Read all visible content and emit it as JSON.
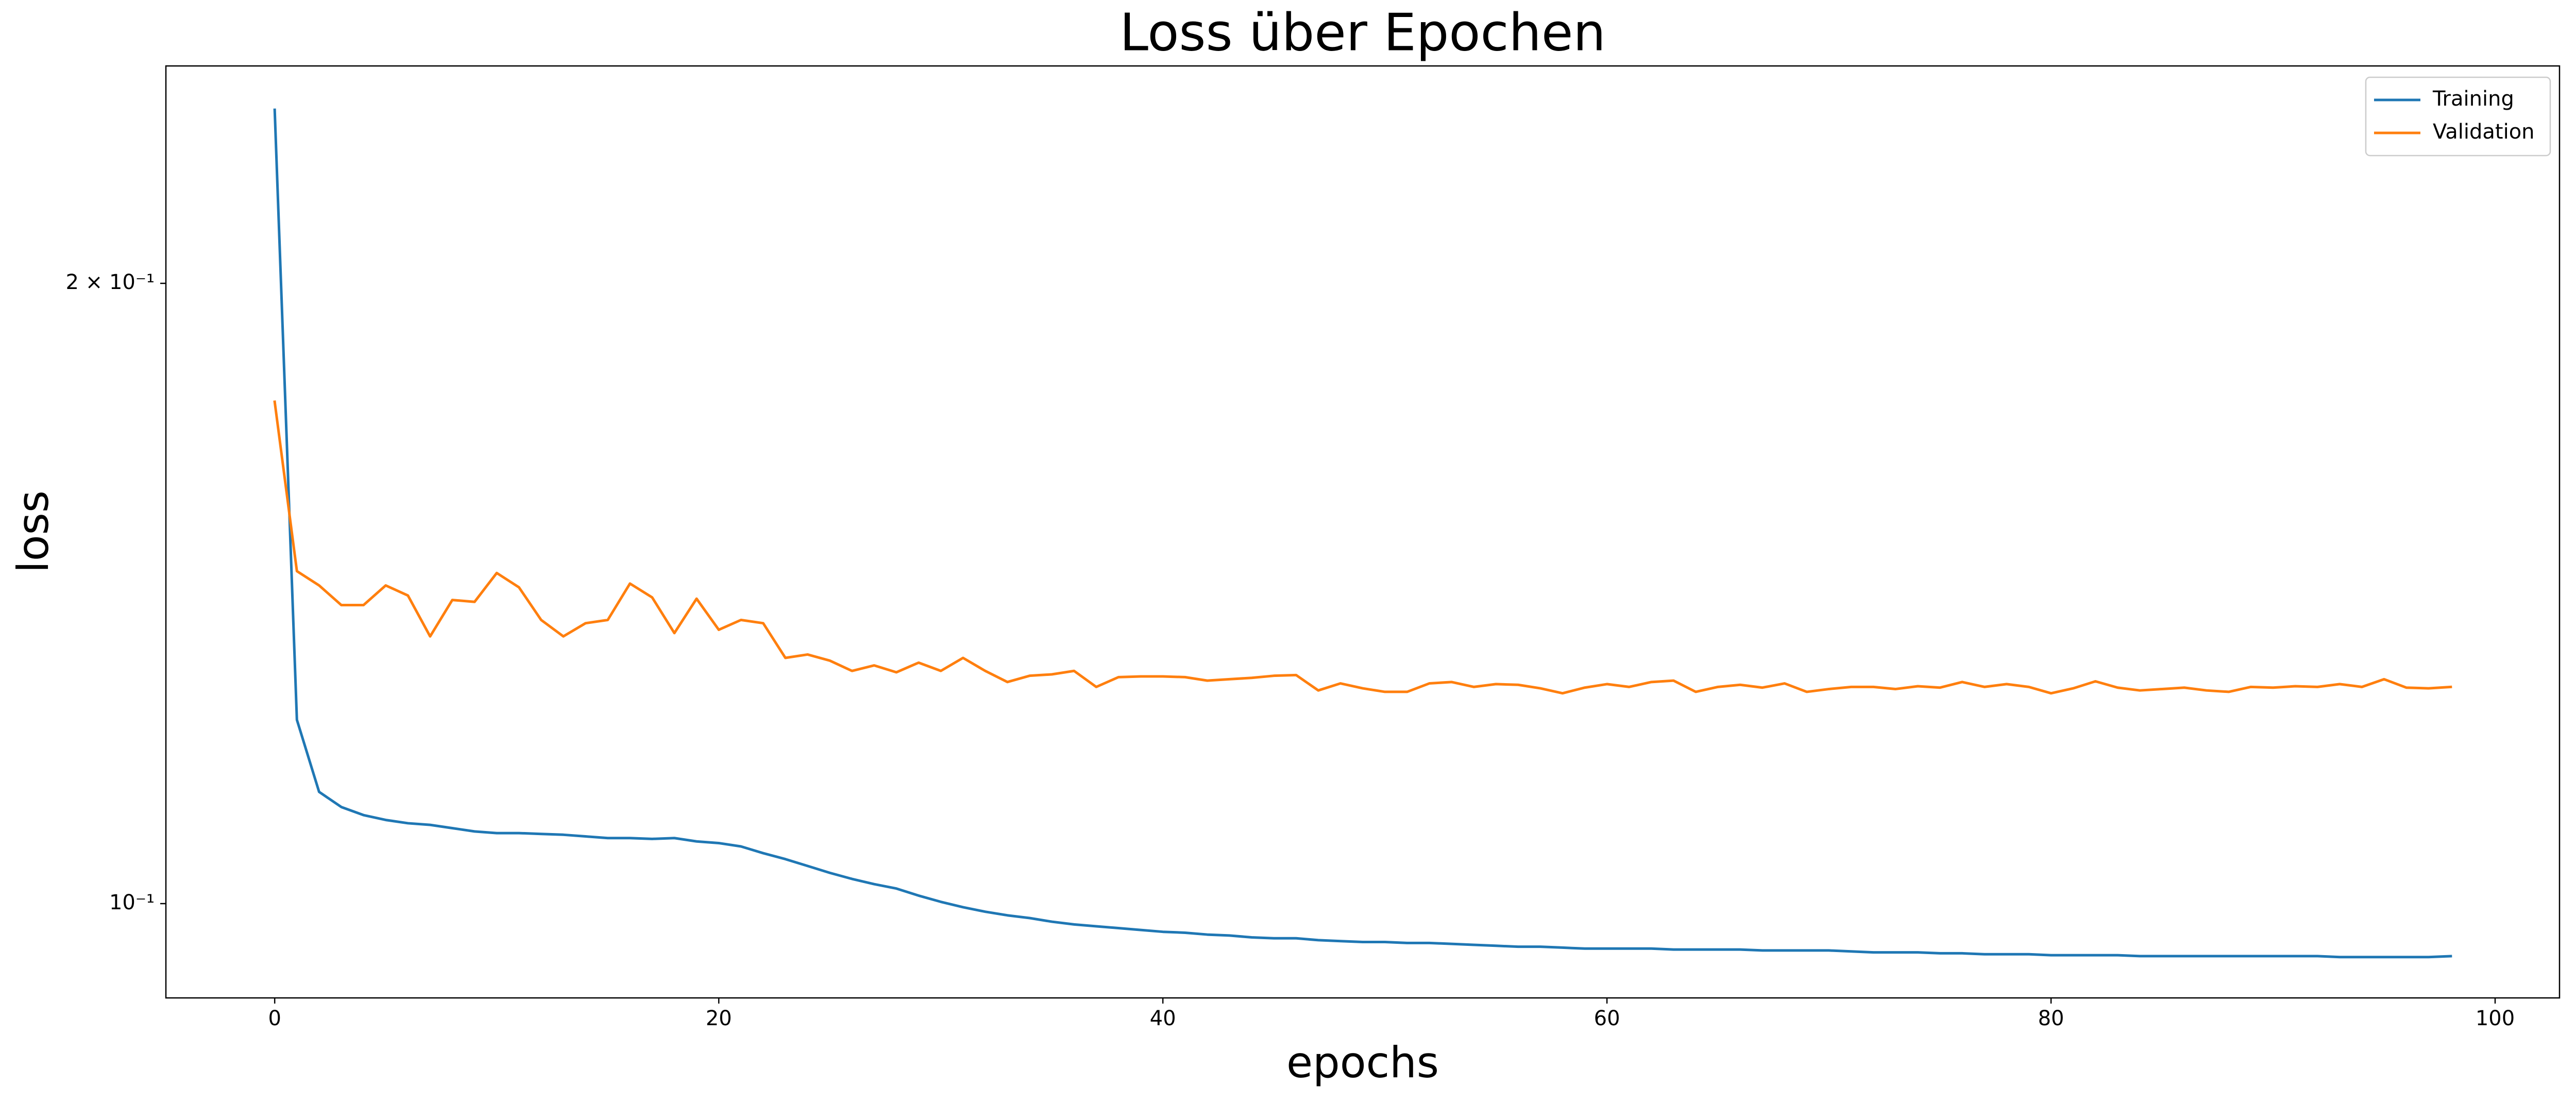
{
  "chart_data": {
    "type": "line",
    "title": "Loss über Epochen",
    "x_label": "epochs",
    "y_label": "loss",
    "x": [
      0,
      1,
      2,
      3,
      4,
      5,
      6,
      7,
      8,
      9,
      10,
      11,
      12,
      13,
      14,
      15,
      16,
      17,
      18,
      19,
      20,
      21,
      22,
      23,
      24,
      25,
      26,
      27,
      28,
      29,
      30,
      31,
      32,
      33,
      34,
      35,
      36,
      37,
      38,
      39,
      40,
      41,
      42,
      43,
      44,
      45,
      46,
      47,
      48,
      49,
      50,
      51,
      52,
      53,
      54,
      55,
      56,
      57,
      58,
      59,
      60,
      61,
      62,
      63,
      64,
      65,
      66,
      67,
      68,
      69,
      70,
      71,
      72,
      73,
      74,
      75,
      76,
      77,
      78,
      79,
      80,
      81,
      82,
      83,
      84,
      85,
      86,
      87,
      88,
      89,
      90,
      91,
      92,
      93,
      94,
      95,
      96,
      97,
      98
    ],
    "series": [
      {
        "name": "Training",
        "color": "#1f77b4",
        "values": [
          0.2428,
          0.1228,
          0.1133,
          0.1114,
          0.1104,
          0.1098,
          0.1094,
          0.1092,
          0.1088,
          0.1084,
          0.1082,
          0.1082,
          0.1081,
          0.108,
          0.1078,
          0.1076,
          0.1076,
          0.1075,
          0.1076,
          0.1072,
          0.107,
          0.1066,
          0.1058,
          0.1051,
          0.1043,
          0.1035,
          0.1028,
          0.1022,
          0.1017,
          0.1009,
          0.1002,
          0.0996,
          0.0991,
          0.0987,
          0.0984,
          0.098,
          0.0977,
          0.0975,
          0.0973,
          0.0971,
          0.0969,
          0.0968,
          0.0966,
          0.0965,
          0.0963,
          0.0962,
          0.0962,
          0.096,
          0.0959,
          0.0958,
          0.0958,
          0.0957,
          0.0957,
          0.0956,
          0.0955,
          0.0954,
          0.0953,
          0.0953,
          0.0952,
          0.0951,
          0.0951,
          0.0951,
          0.0951,
          0.095,
          0.095,
          0.095,
          0.095,
          0.0949,
          0.0949,
          0.0949,
          0.0949,
          0.0948,
          0.0947,
          0.0947,
          0.0947,
          0.0946,
          0.0946,
          0.0945,
          0.0945,
          0.0945,
          0.0944,
          0.0944,
          0.0944,
          0.0944,
          0.0943,
          0.0943,
          0.0943,
          0.0943,
          0.0943,
          0.0943,
          0.0943,
          0.0943,
          0.0943,
          0.0942,
          0.0942,
          0.0942,
          0.0942,
          0.0942,
          0.0943
        ]
      },
      {
        "name": "Validation",
        "color": "#ff7f0e",
        "values": [
          0.1752,
          0.145,
          0.1427,
          0.1396,
          0.1396,
          0.1427,
          0.1411,
          0.1348,
          0.1404,
          0.1401,
          0.1447,
          0.1424,
          0.1373,
          0.1348,
          0.1368,
          0.1373,
          0.143,
          0.1408,
          0.1353,
          0.1406,
          0.1358,
          0.1373,
          0.1368,
          0.1316,
          0.1321,
          0.1312,
          0.1297,
          0.1305,
          0.1295,
          0.1309,
          0.1297,
          0.1316,
          0.1297,
          0.1281,
          0.129,
          0.1292,
          0.1297,
          0.1274,
          0.1288,
          0.1289,
          0.1289,
          0.1288,
          0.1283,
          0.1285,
          0.1287,
          0.129,
          0.1291,
          0.1269,
          0.1279,
          0.1272,
          0.1267,
          0.1267,
          0.1279,
          0.1281,
          0.1274,
          0.1278,
          0.1277,
          0.1272,
          0.1265,
          0.1273,
          0.1278,
          0.1274,
          0.1281,
          0.1283,
          0.1267,
          0.1274,
          0.1277,
          0.1273,
          0.1279,
          0.1267,
          0.1271,
          0.1274,
          0.1274,
          0.1271,
          0.1275,
          0.1273,
          0.1281,
          0.1274,
          0.1278,
          0.1274,
          0.1265,
          0.1272,
          0.1282,
          0.1273,
          0.1269,
          0.1271,
          0.1273,
          0.1269,
          0.1267,
          0.1274,
          0.1273,
          0.1275,
          0.1274,
          0.1278,
          0.1274,
          0.1285,
          0.1273,
          0.1272,
          0.1274
        ]
      }
    ],
    "xlim": [
      -4.9,
      102.9
    ],
    "xticks": [
      0,
      20,
      40,
      60,
      80,
      100
    ],
    "ylim": [
      0.09,
      0.255
    ],
    "yscale": "log",
    "yticks": [
      {
        "value": 0.1,
        "label": "10⁻¹"
      },
      {
        "value": 0.2,
        "label": "2 × 10⁻¹"
      }
    ],
    "legend": "upper right",
    "grid": false
  }
}
